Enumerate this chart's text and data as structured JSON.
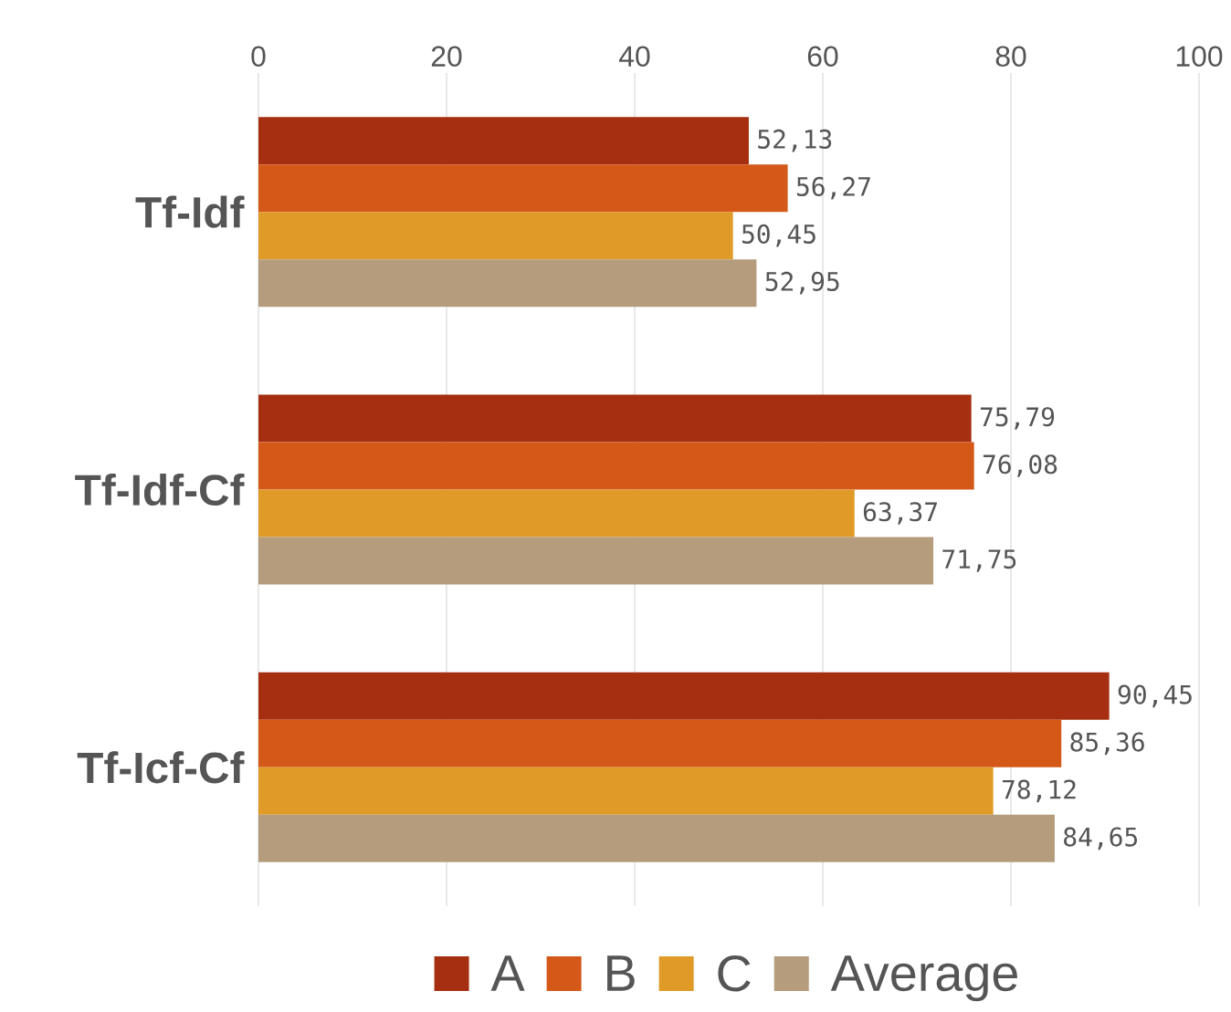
{
  "chart_data": {
    "type": "bar",
    "orientation": "horizontal",
    "categories": [
      "Tf-Idf",
      "Tf-Idf-Cf",
      "Tf-Icf-Cf"
    ],
    "series": [
      {
        "name": "A",
        "color": "#a52f10",
        "values": [
          52.13,
          75.79,
          90.45
        ],
        "value_labels": [
          "52,13",
          "75,79",
          "90,45"
        ]
      },
      {
        "name": "B",
        "color": "#d45818",
        "values": [
          56.27,
          76.08,
          85.36
        ],
        "value_labels": [
          "56,27",
          "76,08",
          "85,36"
        ]
      },
      {
        "name": "C",
        "color": "#e09a28",
        "values": [
          50.45,
          63.37,
          78.12
        ],
        "value_labels": [
          "50,45",
          "63,37",
          "78,12"
        ]
      },
      {
        "name": "Average",
        "color": "#b49c7c",
        "values": [
          52.95,
          71.75,
          84.65
        ],
        "value_labels": [
          "52,95",
          "71,75",
          "84,65"
        ]
      }
    ],
    "xlim": [
      0,
      100
    ],
    "xticks": [
      0,
      20,
      40,
      60,
      80,
      100
    ],
    "grid": "x",
    "legend": "bottom"
  }
}
